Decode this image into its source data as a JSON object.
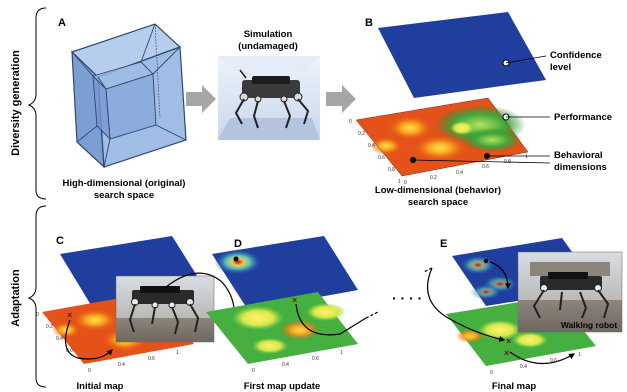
{
  "side_labels": {
    "diversity": "Diversity generation",
    "adaptation": "Adaptation"
  },
  "panel_letters": {
    "A": "A",
    "B": "B",
    "C": "C",
    "D": "D",
    "E": "E"
  },
  "texts": {
    "simulation_line1": "Simulation",
    "simulation_line2": "(undamaged)",
    "hd_line1": "High-dimensional (original)",
    "hd_line2": "search space",
    "ld_line1": "Low-dimensional (behavior)",
    "ld_line2": "search space",
    "confidence_line1": "Confidence",
    "confidence_line2": "level",
    "performance": "Performance",
    "behavioral_line1": "Behavioral",
    "behavioral_line2": "dimensions",
    "dots": "· · · ·",
    "initial_map": "Initial map",
    "first_update": "First map update",
    "final_map": "Final map",
    "walking_robot": "Walking robot"
  },
  "ticks": {
    "values": [
      "0",
      "0.2",
      "0.4",
      "0.6",
      "0.8",
      "1"
    ]
  },
  "colors": {
    "plane_blue": "#1f3e9e",
    "cube_fill": "#8fb1e0",
    "cube_edge": "#31486f",
    "arrow_gray": "#a6a6a6"
  }
}
